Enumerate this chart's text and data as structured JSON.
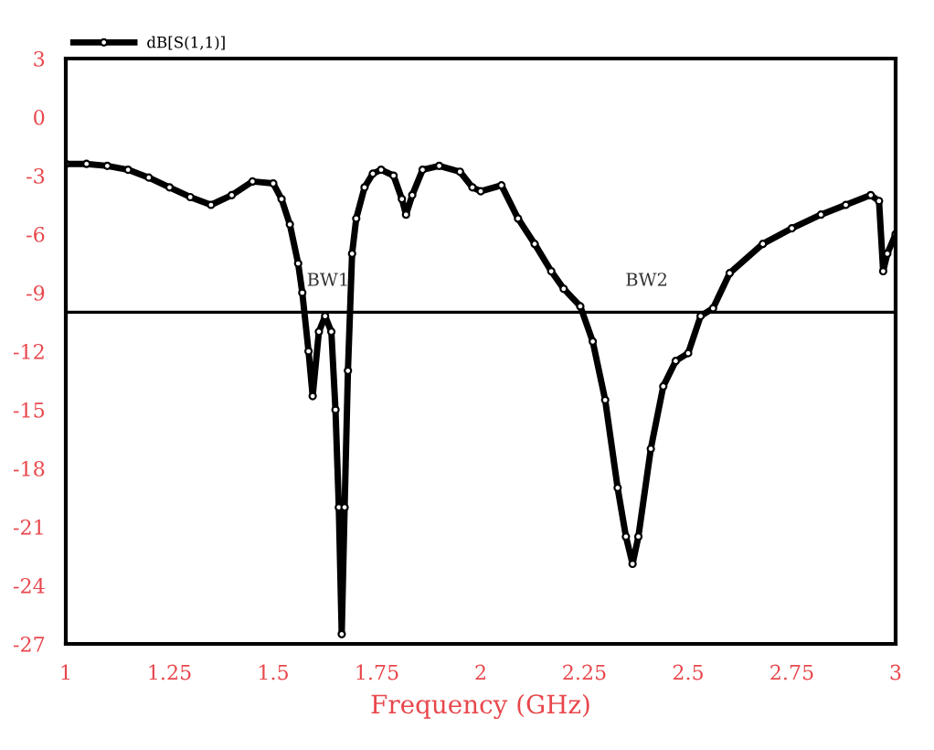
{
  "chart_data": {
    "type": "line",
    "xlabel": "Frequency (GHz)",
    "legend": "top left",
    "marker": "circle",
    "line_style": "solid",
    "grid": false,
    "xlim": [
      1,
      3
    ],
    "xticks": [
      1,
      1.25,
      1.5,
      1.75,
      2,
      2.25,
      2.5,
      2.75,
      3
    ],
    "ylim": [
      -27,
      3
    ],
    "yticks": [
      3,
      0,
      -3,
      -6,
      -9,
      -12,
      -15,
      -18,
      -21,
      -24,
      -27
    ],
    "ref_lines": [
      {
        "axis": "y",
        "value": -10,
        "color": "#000000"
      }
    ],
    "annotations": [
      "BW1",
      "BW2"
    ],
    "series": [
      {
        "name": "dB[S(1,1)]",
        "color": "#000000",
        "x": [
          1.0,
          1.05,
          1.1,
          1.15,
          1.2,
          1.25,
          1.3,
          1.35,
          1.4,
          1.45,
          1.5,
          1.52,
          1.54,
          1.56,
          1.57,
          1.585,
          1.595,
          1.61,
          1.625,
          1.64,
          1.65,
          1.658,
          1.665,
          1.672,
          1.68,
          1.69,
          1.7,
          1.72,
          1.74,
          1.76,
          1.79,
          1.81,
          1.82,
          1.835,
          1.86,
          1.9,
          1.95,
          1.98,
          2.0,
          2.05,
          2.09,
          2.13,
          2.17,
          2.2,
          2.24,
          2.27,
          2.3,
          2.33,
          2.35,
          2.366,
          2.38,
          2.41,
          2.44,
          2.47,
          2.5,
          2.53,
          2.56,
          2.6,
          2.68,
          2.75,
          2.82,
          2.88,
          2.94,
          2.96,
          2.97,
          2.98,
          3.0
        ],
        "values": [
          -2.4,
          -2.4,
          -2.5,
          -2.7,
          -3.1,
          -3.6,
          -4.1,
          -4.5,
          -4.0,
          -3.3,
          -3.4,
          -4.2,
          -5.5,
          -7.5,
          -9.0,
          -12.0,
          -14.3,
          -11.0,
          -10.2,
          -11.0,
          -15.0,
          -20.0,
          -26.5,
          -20.0,
          -13.0,
          -7.0,
          -5.2,
          -3.6,
          -2.9,
          -2.7,
          -3.0,
          -4.2,
          -5.0,
          -4.0,
          -2.7,
          -2.5,
          -2.8,
          -3.6,
          -3.8,
          -3.5,
          -5.2,
          -6.5,
          -7.9,
          -8.8,
          -9.7,
          -11.5,
          -14.5,
          -19.0,
          -21.5,
          -22.9,
          -21.5,
          -17.0,
          -13.8,
          -12.5,
          -12.1,
          -10.2,
          -9.8,
          -8.0,
          -6.5,
          -5.7,
          -5.0,
          -4.5,
          -4.0,
          -4.3,
          -7.9,
          -7.0,
          -6.0
        ]
      }
    ]
  }
}
